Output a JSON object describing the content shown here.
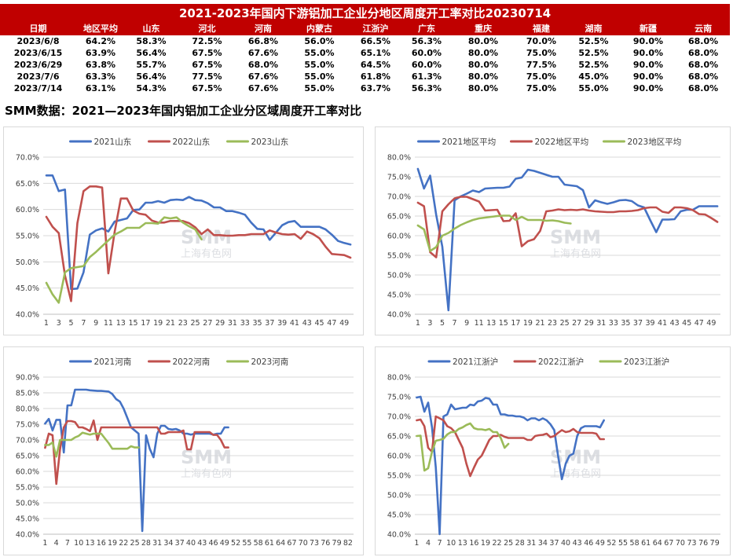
{
  "table": {
    "title": "2021-2023年国内下游铝加工企业分地区周度开工率对比20230714",
    "headers": [
      "日期",
      "地区平均",
      "山东",
      "河北",
      "河南",
      "内蒙古",
      "江浙沪",
      "广东",
      "重庆",
      "福建",
      "湖南",
      "新疆",
      "云南"
    ],
    "rows": [
      [
        "2023/6/8",
        "64.2%",
        "58.3%",
        "72.5%",
        "66.8%",
        "56.0%",
        "66.5%",
        "56.3%",
        "80.0%",
        "70.0%",
        "52.5%",
        "90.0%",
        "68.0%"
      ],
      [
        "2023/6/15",
        "63.9%",
        "56.4%",
        "67.5%",
        "67.6%",
        "55.0%",
        "65.1%",
        "60.0%",
        "80.0%",
        "75.0%",
        "52.5%",
        "90.0%",
        "68.0%"
      ],
      [
        "2023/6/29",
        "63.8%",
        "55.7%",
        "67.5%",
        "68.0%",
        "55.0%",
        "64.5%",
        "60.0%",
        "80.0%",
        "77.5%",
        "52.5%",
        "90.0%",
        "68.0%"
      ],
      [
        "2023/7/6",
        "63.3%",
        "56.4%",
        "77.5%",
        "67.6%",
        "55.0%",
        "61.8%",
        "61.3%",
        "80.0%",
        "75.0%",
        "45.0%",
        "90.0%",
        "68.0%"
      ],
      [
        "2023/7/14",
        "63.1%",
        "54.3%",
        "67.5%",
        "67.6%",
        "55.0%",
        "63.7%",
        "56.3%",
        "80.0%",
        "75.0%",
        "55.0%",
        "90.0%",
        "68.0%"
      ]
    ]
  },
  "subtitle": "SMM数据：2021—2023年国内铝加工企业分区域周度开工率对比",
  "watermark": {
    "brand": "SMM",
    "text": "上海有色网"
  },
  "colors": {
    "s2021": "#4472c4",
    "s2022": "#c0504d",
    "s2023": "#9bbb59",
    "header_bg": "#c00000",
    "grid": "#d9d9d9"
  },
  "chart_data": [
    {
      "type": "line",
      "region": "shandong",
      "ylim": [
        0.4,
        0.7
      ],
      "yticks": [
        0.4,
        0.45,
        0.5,
        0.55,
        0.6,
        0.65,
        0.7
      ],
      "ytick_labels": [
        "40.0%",
        "45.0%",
        "50.0%",
        "55.0%",
        "60.0%",
        "65.0%",
        "70.0%"
      ],
      "xmax": 50,
      "xtick_labels": [
        "1",
        "3",
        "5",
        "7",
        "9",
        "11",
        "13",
        "15",
        "17",
        "19",
        "21",
        "23",
        "25",
        "27",
        "29",
        "31",
        "33",
        "35",
        "37",
        "39",
        "41",
        "43",
        "45",
        "47",
        "49"
      ],
      "legend_position": "top",
      "series": [
        {
          "name": "2021山东",
          "values": [
            0.665,
            0.665,
            0.635,
            0.638,
            0.448,
            0.449,
            0.48,
            0.552,
            0.56,
            0.564,
            0.558,
            0.577,
            0.58,
            0.583,
            0.599,
            0.6,
            0.613,
            0.613,
            0.616,
            0.613,
            0.618,
            0.619,
            0.618,
            0.624,
            0.618,
            0.617,
            0.612,
            0.604,
            0.604,
            0.597,
            0.597,
            0.594,
            0.59,
            0.575,
            0.563,
            0.562,
            0.542,
            0.556,
            0.57,
            0.576,
            0.578,
            0.567,
            0.567,
            0.567,
            0.567,
            0.562,
            0.552,
            0.54,
            0.536,
            0.533
          ]
        },
        {
          "name": "2022山东",
          "values": [
            0.586,
            0.567,
            0.555,
            0.474,
            0.425,
            0.574,
            0.635,
            0.644,
            0.644,
            0.642,
            0.478,
            0.557,
            0.621,
            0.621,
            0.598,
            0.592,
            0.59,
            0.579,
            0.575,
            0.575,
            0.578,
            0.578,
            0.578,
            0.574,
            0.566,
            0.553,
            0.562,
            0.551,
            0.551,
            0.55,
            0.55,
            0.551,
            0.551,
            0.553,
            0.553,
            0.553,
            0.56,
            0.556,
            0.553,
            0.552,
            0.553,
            0.544,
            0.558,
            0.553,
            0.545,
            0.529,
            0.515,
            0.514,
            0.513,
            0.508
          ]
        },
        {
          "name": "2023山东",
          "values": [
            0.46,
            0.438,
            0.422,
            0.48,
            0.488,
            0.49,
            0.492,
            0.509,
            0.519,
            0.53,
            0.541,
            0.552,
            0.558,
            0.565,
            0.565,
            0.565,
            0.574,
            0.574,
            0.573,
            0.585,
            0.583,
            0.585,
            0.575,
            0.568,
            0.562,
            0.543
          ]
        }
      ]
    },
    {
      "type": "line",
      "region": "regional-average",
      "ylim": [
        0.4,
        0.8
      ],
      "yticks": [
        0.4,
        0.45,
        0.5,
        0.55,
        0.6,
        0.65,
        0.7,
        0.75,
        0.8
      ],
      "ytick_labels": [
        "40.0%",
        "45.0%",
        "50.0%",
        "55.0%",
        "60.0%",
        "65.0%",
        "70.0%",
        "75.0%",
        "80.0%"
      ],
      "xmax": 50,
      "xtick_labels": [
        "1",
        "3",
        "5",
        "7",
        "9",
        "11",
        "13",
        "15",
        "17",
        "19",
        "21",
        "23",
        "25",
        "27",
        "29",
        "31",
        "33",
        "35",
        "37",
        "39",
        "41",
        "43",
        "45",
        "47",
        "49"
      ],
      "legend_position": "top",
      "series": [
        {
          "name": "2021地区平均",
          "values": [
            0.77,
            0.72,
            0.753,
            0.653,
            0.572,
            0.41,
            0.69,
            0.7,
            0.707,
            0.715,
            0.711,
            0.72,
            0.721,
            0.722,
            0.722,
            0.725,
            0.745,
            0.748,
            0.768,
            0.765,
            0.76,
            0.755,
            0.75,
            0.75,
            0.73,
            0.728,
            0.726,
            0.716,
            0.672,
            0.69,
            0.685,
            0.681,
            0.685,
            0.69,
            0.691,
            0.688,
            0.677,
            0.672,
            0.64,
            0.609,
            0.641,
            0.641,
            0.642,
            0.662,
            0.666,
            0.666,
            0.675,
            0.675,
            0.675,
            0.675
          ]
        },
        {
          "name": "2022地区平均",
          "values": [
            0.684,
            0.675,
            0.558,
            0.545,
            0.662,
            0.68,
            0.695,
            0.699,
            0.699,
            0.693,
            0.687,
            0.664,
            0.665,
            0.666,
            0.637,
            0.638,
            0.657,
            0.573,
            0.586,
            0.591,
            0.612,
            0.662,
            0.664,
            0.667,
            0.665,
            0.666,
            0.665,
            0.667,
            0.664,
            0.662,
            0.661,
            0.66,
            0.66,
            0.662,
            0.662,
            0.663,
            0.665,
            0.67,
            0.672,
            0.672,
            0.661,
            0.658,
            0.672,
            0.672,
            0.67,
            0.665,
            0.655,
            0.654,
            0.645,
            0.635
          ]
        },
        {
          "name": "2023地区平均",
          "values": [
            0.626,
            0.616,
            0.561,
            0.571,
            0.6,
            0.607,
            0.618,
            0.627,
            0.634,
            0.64,
            0.644,
            0.646,
            0.648,
            0.65,
            0.651,
            0.651,
            0.64,
            0.648,
            0.64,
            0.64,
            0.64,
            0.638,
            0.639,
            0.637,
            0.633,
            0.631
          ]
        }
      ]
    },
    {
      "type": "line",
      "region": "henan",
      "ylim": [
        0.4,
        0.9
      ],
      "yticks": [
        0.4,
        0.45,
        0.5,
        0.55,
        0.6,
        0.65,
        0.7,
        0.75,
        0.8,
        0.85,
        0.9
      ],
      "ytick_labels": [
        "40.0%",
        "45.0%",
        "50.0%",
        "55.0%",
        "60.0%",
        "65.0%",
        "70.0%",
        "75.0%",
        "80.0%",
        "85.0%",
        "90.0%"
      ],
      "xmax": 83,
      "xtick_labels": [
        "1",
        "4",
        "7",
        "10",
        "13",
        "16",
        "19",
        "22",
        "25",
        "28",
        "31",
        "34",
        "37",
        "40",
        "43",
        "46",
        "49",
        "52",
        "55",
        "58",
        "61",
        "64",
        "67",
        "70",
        "73",
        "76",
        "79",
        "82"
      ],
      "legend_position": "top",
      "series": [
        {
          "name": "2021河南",
          "values": [
            0.752,
            0.767,
            0.73,
            0.764,
            0.764,
            0.66,
            0.81,
            0.81,
            0.86,
            0.86,
            0.86,
            0.86,
            0.858,
            0.857,
            0.856,
            0.856,
            0.855,
            0.854,
            0.846,
            0.83,
            0.822,
            0.8,
            0.77,
            0.74,
            0.73,
            0.72,
            0.41,
            0.715,
            0.672,
            0.645,
            0.72,
            0.745,
            0.745,
            0.735,
            0.733,
            0.735,
            0.73,
            0.72,
            0.72,
            0.717,
            0.72,
            0.72,
            0.72,
            0.72,
            0.72,
            0.717,
            0.72,
            0.72,
            0.74,
            0.74
          ]
        },
        {
          "name": "2022河南",
          "values": [
            0.675,
            0.72,
            0.715,
            0.56,
            0.67,
            0.74,
            0.76,
            0.76,
            0.757,
            0.74,
            0.74,
            0.735,
            0.728,
            0.762,
            0.7,
            0.74,
            0.74,
            0.74,
            0.74,
            0.74,
            0.74,
            0.74,
            0.74,
            0.74,
            0.74,
            0.74,
            0.74,
            0.74,
            0.74,
            0.74,
            0.74,
            0.72,
            0.72,
            0.725,
            0.725,
            0.725,
            0.725,
            0.73,
            0.67,
            0.67,
            0.725,
            0.725,
            0.725,
            0.725,
            0.725,
            0.716,
            0.716,
            0.7,
            0.676,
            0.676
          ]
        },
        {
          "name": "2023河南",
          "values": [
            0.684,
            0.684,
            0.692,
            0.647,
            0.7,
            0.7,
            0.7,
            0.7,
            0.708,
            0.713,
            0.723,
            0.72,
            0.717,
            0.72,
            0.72,
            0.72,
            0.705,
            0.69,
            0.672,
            0.672,
            0.672,
            0.672,
            0.672,
            0.68,
            0.676,
            0.676
          ]
        }
      ]
    },
    {
      "type": "line",
      "region": "jiangzhehu",
      "ylim": [
        0.4,
        0.8
      ],
      "yticks": [
        0.4,
        0.45,
        0.5,
        0.55,
        0.6,
        0.65,
        0.7,
        0.75,
        0.8
      ],
      "ytick_labels": [
        "40.0%",
        "45.0%",
        "50.0%",
        "55.0%",
        "60.0%",
        "65.0%",
        "70.0%",
        "75.0%",
        "80.0%"
      ],
      "xmax": 80,
      "xtick_labels": [
        "1",
        "4",
        "7",
        "10",
        "13",
        "16",
        "19",
        "22",
        "25",
        "28",
        "31",
        "34",
        "37",
        "40",
        "43",
        "46",
        "49",
        "52",
        "55",
        "58",
        "61",
        "64",
        "67",
        "70",
        "73",
        "76",
        "79"
      ],
      "legend_position": "top",
      "series": [
        {
          "name": "2021江浙沪",
          "values": [
            0.748,
            0.75,
            0.712,
            0.735,
            0.672,
            0.57,
            0.4,
            0.7,
            0.705,
            0.73,
            0.718,
            0.72,
            0.722,
            0.722,
            0.73,
            0.728,
            0.738,
            0.74,
            0.747,
            0.745,
            0.73,
            0.73,
            0.705,
            0.705,
            0.702,
            0.702,
            0.7,
            0.7,
            0.697,
            0.69,
            0.695,
            0.695,
            0.69,
            0.695,
            0.69,
            0.68,
            0.665,
            0.6,
            0.54,
            0.58,
            0.6,
            0.605,
            0.65,
            0.67,
            0.675,
            0.675,
            0.675,
            0.675,
            0.672,
            0.69
          ]
        },
        {
          "name": "2022江浙沪",
          "values": [
            0.69,
            0.692,
            0.675,
            0.62,
            0.61,
            0.7,
            0.695,
            0.69,
            0.675,
            0.67,
            0.66,
            0.64,
            0.62,
            0.58,
            0.548,
            0.57,
            0.59,
            0.6,
            0.62,
            0.64,
            0.65,
            0.65,
            0.653,
            0.648,
            0.645,
            0.645,
            0.645,
            0.645,
            0.645,
            0.64,
            0.64,
            0.65,
            0.652,
            0.653,
            0.656,
            0.647,
            0.65,
            0.658,
            0.665,
            0.66,
            0.662,
            0.668,
            0.66,
            0.658,
            0.658,
            0.658,
            0.658,
            0.656,
            0.642,
            0.642
          ]
        },
        {
          "name": "2023江浙沪",
          "values": [
            0.65,
            0.651,
            0.562,
            0.568,
            0.61,
            0.638,
            0.64,
            0.643,
            0.654,
            0.66,
            0.66,
            0.668,
            0.672,
            0.678,
            0.682,
            0.67,
            0.667,
            0.667,
            0.665,
            0.668,
            0.66,
            0.66,
            0.645,
            0.62,
            0.63
          ]
        }
      ]
    }
  ]
}
